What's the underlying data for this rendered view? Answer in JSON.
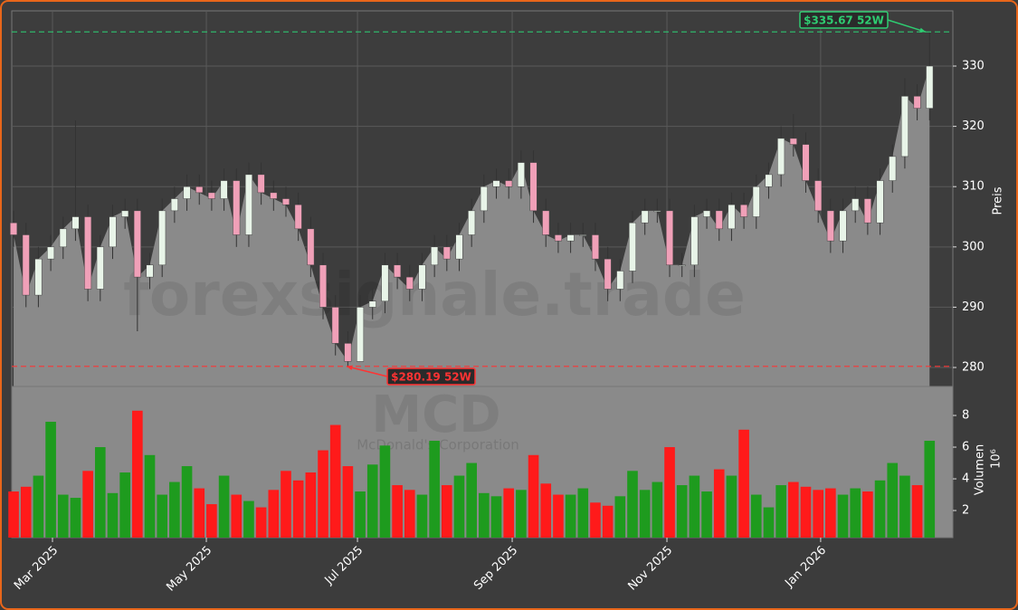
{
  "chart_data": {
    "type": "candlestick",
    "open": [
      304,
      302,
      292,
      298,
      300,
      303,
      305,
      293,
      300,
      305,
      306,
      295,
      297,
      306,
      308,
      310,
      309,
      308,
      311,
      302,
      312,
      309,
      308,
      307,
      303,
      297,
      290,
      284,
      281,
      290,
      291,
      297,
      295,
      293,
      297,
      300,
      298,
      302,
      306,
      310,
      311,
      310,
      314,
      306,
      302,
      301,
      302,
      302,
      298,
      293,
      296,
      304,
      306,
      306,
      297,
      297,
      305,
      306,
      303,
      307,
      305,
      310,
      312,
      318,
      317,
      311,
      306,
      301,
      306,
      308,
      304,
      311,
      315,
      325,
      323
    ],
    "high": [
      306,
      304,
      300,
      302,
      305,
      321,
      307,
      302,
      307,
      308,
      308,
      299,
      308,
      310,
      312,
      312,
      311,
      313,
      313,
      314,
      314,
      311,
      310,
      309,
      305,
      299,
      292,
      286,
      292,
      293,
      299,
      299,
      297,
      299,
      302,
      302,
      304,
      308,
      312,
      313,
      313,
      316,
      316,
      308,
      304,
      304,
      304,
      304,
      300,
      298,
      306,
      308,
      308,
      308,
      299,
      307,
      308,
      308,
      309,
      309,
      312,
      314,
      320,
      322,
      319,
      313,
      308,
      308,
      310,
      310,
      313,
      317,
      328,
      327,
      335.67
    ],
    "low": [
      300,
      290,
      290,
      296,
      298,
      301,
      291,
      291,
      298,
      303,
      286,
      293,
      295,
      304,
      306,
      307,
      306,
      306,
      300,
      300,
      307,
      306,
      305,
      301,
      295,
      288,
      282,
      280.19,
      281,
      288,
      289,
      293,
      291,
      291,
      295,
      296,
      296,
      300,
      304,
      308,
      308,
      308,
      304,
      300,
      299,
      299,
      300,
      296,
      291,
      291,
      294,
      302,
      304,
      295,
      295,
      295,
      303,
      301,
      301,
      303,
      303,
      308,
      310,
      315,
      309,
      304,
      299,
      299,
      304,
      302,
      302,
      309,
      313,
      321,
      321
    ],
    "close": [
      302,
      292,
      298,
      300,
      303,
      305,
      293,
      300,
      305,
      306,
      295,
      297,
      306,
      308,
      310,
      309,
      308,
      311,
      302,
      312,
      309,
      308,
      307,
      303,
      297,
      290,
      284,
      281,
      290,
      291,
      297,
      295,
      293,
      297,
      300,
      298,
      302,
      306,
      310,
      311,
      310,
      314,
      306,
      302,
      301,
      302,
      302,
      298,
      293,
      296,
      304,
      306,
      306,
      297,
      297,
      305,
      306,
      303,
      307,
      305,
      310,
      312,
      318,
      317,
      311,
      306,
      301,
      306,
      308,
      304,
      311,
      315,
      325,
      323,
      330
    ],
    "volume": [
      3.2,
      3.5,
      4.2,
      7.6,
      3.0,
      2.8,
      4.5,
      6.0,
      3.1,
      4.4,
      8.3,
      5.5,
      3.0,
      3.8,
      4.8,
      3.4,
      2.4,
      4.2,
      3.0,
      2.6,
      2.2,
      3.3,
      4.5,
      3.9,
      4.4,
      5.8,
      7.4,
      4.8,
      3.2,
      4.9,
      6.1,
      3.6,
      3.3,
      3.0,
      6.4,
      3.6,
      4.2,
      5.0,
      3.1,
      2.9,
      3.4,
      3.3,
      5.5,
      3.7,
      3.0,
      3.0,
      3.4,
      2.5,
      2.3,
      2.9,
      4.5,
      3.3,
      3.8,
      6.0,
      3.6,
      4.2,
      3.2,
      4.6,
      4.2,
      7.1,
      3.0,
      2.2,
      3.6,
      3.8,
      3.5,
      3.3,
      3.4,
      3.0,
      3.4,
      3.2,
      3.9,
      5.0,
      4.2,
      3.6,
      6.4
    ],
    "up_color": "#1e9b1e",
    "down_color": "#ff1a1a",
    "candle_up_color": "#e8f4e8",
    "candle_down_color": "#f0a0b8",
    "area_color": "#8a8a8a",
    "xlim": [
      -0.15,
      75.88
    ],
    "xticks": [
      {
        "value": 3.14,
        "label": "Mar 2025"
      },
      {
        "value": 15.57,
        "label": "May 2025"
      },
      {
        "value": 27.78,
        "label": "Jul 2025"
      },
      {
        "value": 40.28,
        "label": "Sep 2025"
      },
      {
        "value": 52.78,
        "label": "Nov 2025"
      },
      {
        "value": 65.2,
        "label": "Jan 2026"
      }
    ],
    "ylim": [
      276.85,
      339.16
    ],
    "yticks": [
      280,
      290,
      300,
      310,
      320,
      330
    ],
    "y2lim": [
      0.29,
      9.83
    ],
    "y2ticks": [
      2,
      4,
      6,
      8
    ],
    "ylabel": "Preis",
    "y2label": "Volumen",
    "y2multiplier": "10⁶",
    "grid": true,
    "annotations": [
      {
        "value": 335.67,
        "label": "$335.67 52W",
        "color": "#2ecc71"
      },
      {
        "value": 280.19,
        "label": "$280.19 52W",
        "color": "#ff3333"
      }
    ],
    "watermark": "forexsignale.trade",
    "ticker": "MCD",
    "company": "McDonald's Corporation"
  }
}
